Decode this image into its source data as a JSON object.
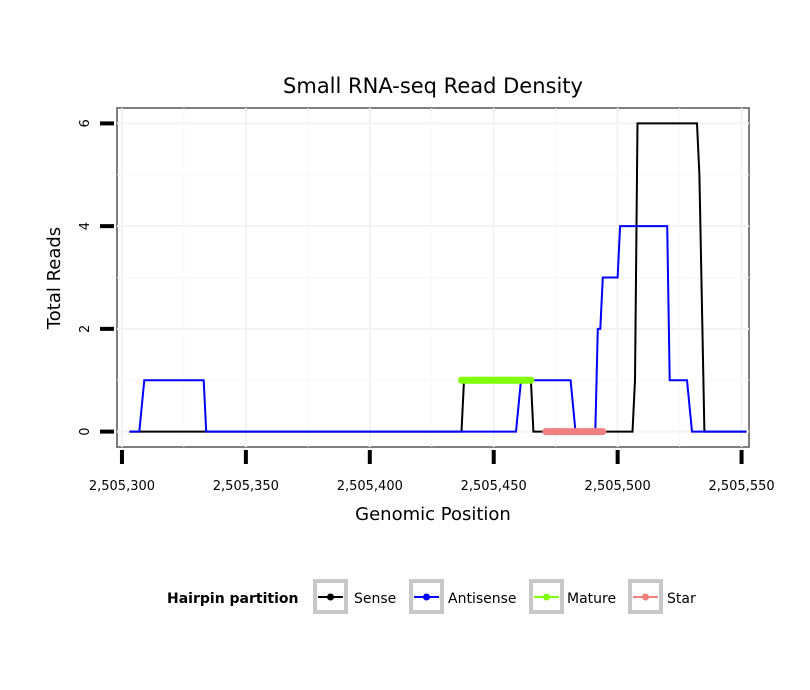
{
  "chart_data": {
    "type": "line",
    "title": "Small RNA-seq Read Density",
    "xlabel": "Genomic Position",
    "ylabel": "Total Reads",
    "xlim": [
      2505298,
      2505553
    ],
    "ylim": [
      -0.3,
      6.3
    ],
    "x_ticks": [
      {
        "value": 2505300,
        "label": "2,505,300"
      },
      {
        "value": 2505350,
        "label": "2,505,350"
      },
      {
        "value": 2505400,
        "label": "2,505,400"
      },
      {
        "value": 2505450,
        "label": "2,505,450"
      },
      {
        "value": 2505500,
        "label": "2,505,500"
      },
      {
        "value": 2505550,
        "label": "2,505,550"
      }
    ],
    "y_ticks": [
      {
        "value": 0,
        "label": "0"
      },
      {
        "value": 2,
        "label": "2"
      },
      {
        "value": 4,
        "label": "4"
      },
      {
        "value": 6,
        "label": "6"
      }
    ],
    "grid": true,
    "legend": {
      "title": "Hairpin partition",
      "position": "bottom"
    },
    "series": [
      {
        "name": "Sense",
        "color": "#000000",
        "x": [
          2505303,
          2505437,
          2505438,
          2505465,
          2505466,
          2505496,
          2505506,
          2505507,
          2505508,
          2505532,
          2505533,
          2505535,
          2505552
        ],
        "y": [
          0,
          0,
          1,
          1,
          0,
          0,
          0,
          1,
          6,
          6,
          5,
          0,
          0
        ]
      },
      {
        "name": "Antisense",
        "color": "#0000ff",
        "x": [
          2505303,
          2505307,
          2505309,
          2505333,
          2505334,
          2505459,
          2505461,
          2505475,
          2505476,
          2505481,
          2505483,
          2505491,
          2505492,
          2505493,
          2505494,
          2505500,
          2505501,
          2505503,
          2505520,
          2505521,
          2505528,
          2505530,
          2505552
        ],
        "y": [
          0,
          0,
          1,
          1,
          0,
          0,
          1,
          1,
          1,
          1,
          0,
          0,
          2,
          2,
          3,
          3,
          4,
          4,
          4,
          1,
          1,
          0,
          0
        ]
      },
      {
        "name": "Mature",
        "color": "#7fff00",
        "x": [
          2505437,
          2505465
        ],
        "y": [
          1,
          1
        ]
      },
      {
        "name": "Star",
        "color": "#f08080",
        "x": [
          2505471,
          2505494
        ],
        "y": [
          0,
          0
        ]
      }
    ]
  }
}
